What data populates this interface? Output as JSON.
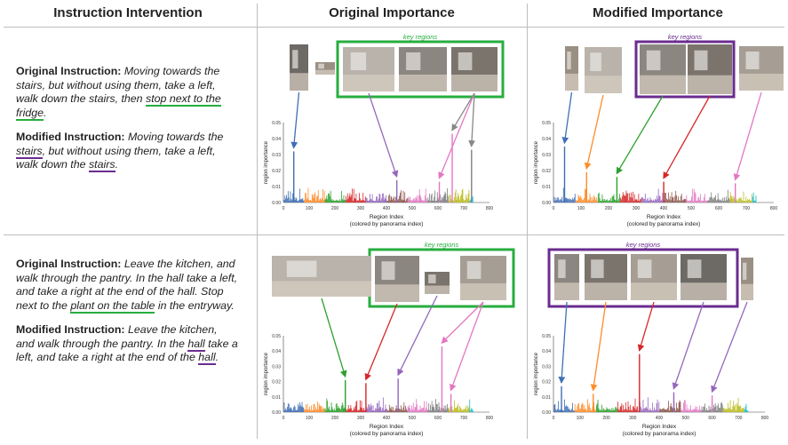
{
  "headers": {
    "col1": "Instruction Intervention",
    "col2": "Original Importance",
    "col3": "Modified Importance"
  },
  "rows": [
    {
      "original": {
        "label": "Original Instruction:",
        "text_a": " Moving towards the stairs, but without using them, take a left, walk down the stairs, then ",
        "text_u": "stop next to the fridge",
        "text_b": "."
      },
      "modified": {
        "label": "Modified Instruction:",
        "t1": " Moving towards the ",
        "u1": "stairs",
        "t2": ", but without using them, take a left, walk down the ",
        "u2": "stairs",
        "t3": "."
      }
    },
    {
      "original": {
        "label": "Original Instruction:",
        "text_a": " Leave the kitchen, and walk through the pantry. In the hall take a left, and take a right at the end of the hall. Stop next to the ",
        "text_u": "plant on the table",
        "text_b": " in the entryway."
      },
      "modified": {
        "label": "Modified Instruction:",
        "t1": " Leave the kitchen, and walk through the pantry. In the ",
        "u1": "hall",
        "t2": " take a left, and take a right at the end of the ",
        "u2": "hall",
        "t3": "."
      }
    }
  ],
  "key_regions_label": "key regions",
  "colors": {
    "green": "#27ae3f",
    "purple": "#6a2c8f",
    "gray": "#888888",
    "divider": "#bdbdbd",
    "palette": [
      "#3f6fb5",
      "#ff8c2a",
      "#2ca02c",
      "#d62728",
      "#9467bd",
      "#8c564b",
      "#e377c2",
      "#7f7f7f",
      "#bcbd22",
      "#17becf"
    ]
  },
  "chart_data": [
    {
      "type": "bar",
      "panel": "row1-original",
      "xlabel": "Region Index",
      "xlabel2": "(colored by panorama index)",
      "ylabel": "region importance",
      "xlim": [
        0,
        800
      ],
      "ylim": [
        0,
        0.05
      ],
      "xticks": [
        "0",
        "100",
        "200",
        "300",
        "400",
        "500",
        "600",
        "700",
        "800"
      ],
      "yticks": [
        "0.00",
        "0.01",
        "0.02",
        "0.03",
        "0.04",
        "0.05"
      ],
      "peaks": [
        {
          "x": 40,
          "y": 0.032,
          "color": "#3f6fb5"
        },
        {
          "x": 440,
          "y": 0.014,
          "color": "#9467bd"
        },
        {
          "x": 605,
          "y": 0.013,
          "color": "#e377c2"
        },
        {
          "x": 655,
          "y": 0.043,
          "color": "#e377c2"
        },
        {
          "x": 730,
          "y": 0.033,
          "color": "#7f7f7f"
        }
      ],
      "arrows": [
        {
          "thumb": 0,
          "x": 40,
          "color": "#3f6fb5"
        },
        {
          "thumb": 2,
          "x": 440,
          "color": "#9467bd"
        },
        {
          "thumb": 4,
          "x": 605,
          "color": "#e377c2"
        },
        {
          "thumb": 4,
          "x": 655,
          "color": "#888888"
        },
        {
          "thumb": 5,
          "x": 730,
          "color": "#888888"
        }
      ]
    },
    {
      "type": "bar",
      "panel": "row1-modified",
      "xlabel": "Region Index",
      "xlabel2": "(colored by panorama index)",
      "ylabel": "region importance",
      "xlim": [
        0,
        800
      ],
      "ylim": [
        0,
        0.05
      ],
      "xticks": [
        "0",
        "100",
        "200",
        "300",
        "400",
        "500",
        "600",
        "700",
        "800"
      ],
      "yticks": [
        "0.00",
        "0.01",
        "0.02",
        "0.03",
        "0.04",
        "0.05"
      ],
      "peaks": [
        {
          "x": 40,
          "y": 0.035,
          "color": "#3f6fb5"
        },
        {
          "x": 120,
          "y": 0.019,
          "color": "#ff8c2a"
        },
        {
          "x": 230,
          "y": 0.016,
          "color": "#2ca02c"
        },
        {
          "x": 400,
          "y": 0.013,
          "color": "#d62728"
        },
        {
          "x": 660,
          "y": 0.012,
          "color": "#e377c2"
        }
      ],
      "arrows": [
        {
          "thumb": 0,
          "x": 40,
          "color": "#3f6fb5"
        },
        {
          "thumb": 1,
          "x": 120,
          "color": "#ff8c2a"
        },
        {
          "thumb": 2,
          "x": 230,
          "color": "#2ca02c"
        },
        {
          "thumb": 3,
          "x": 400,
          "color": "#d62728"
        },
        {
          "thumb": 5,
          "x": 660,
          "color": "#e377c2"
        }
      ]
    },
    {
      "type": "bar",
      "panel": "row2-original",
      "xlabel": "Region Index",
      "xlabel2": "(colored by panorama index)",
      "ylabel": "region importance",
      "xlim": [
        0,
        800
      ],
      "ylim": [
        0,
        0.05
      ],
      "xticks": [
        "0",
        "100",
        "200",
        "300",
        "400",
        "500",
        "600",
        "700",
        "800"
      ],
      "yticks": [
        "0.00",
        "0.01",
        "0.02",
        "0.03",
        "0.04",
        "0.05"
      ],
      "peaks": [
        {
          "x": 240,
          "y": 0.021,
          "color": "#2ca02c"
        },
        {
          "x": 320,
          "y": 0.019,
          "color": "#d62728"
        },
        {
          "x": 445,
          "y": 0.022,
          "color": "#9467bd"
        },
        {
          "x": 615,
          "y": 0.043,
          "color": "#e377c2"
        },
        {
          "x": 650,
          "y": 0.012,
          "color": "#e377c2"
        }
      ],
      "arrows": [
        {
          "thumb": 0,
          "x": 240,
          "color": "#2ca02c"
        },
        {
          "thumb": 1,
          "x": 320,
          "color": "#d62728"
        },
        {
          "thumb": 2,
          "x": 445,
          "color": "#9467bd"
        },
        {
          "thumb": 3,
          "x": 615,
          "color": "#e377c2"
        },
        {
          "thumb": 4,
          "x": 650,
          "color": "#e377c2"
        }
      ]
    },
    {
      "type": "bar",
      "panel": "row2-modified",
      "xlabel": "Region Index",
      "xlabel2": "(colored by panorama index)",
      "ylabel": "region importance",
      "xlim": [
        0,
        800
      ],
      "ylim": [
        0,
        0.05
      ],
      "xticks": [
        "0",
        "100",
        "200",
        "300",
        "400",
        "500",
        "600",
        "700",
        "800"
      ],
      "yticks": [
        "0.00",
        "0.01",
        "0.02",
        "0.03",
        "0.04",
        "0.05"
      ],
      "peaks": [
        {
          "x": 30,
          "y": 0.017,
          "color": "#3f6fb5"
        },
        {
          "x": 150,
          "y": 0.012,
          "color": "#ff8c2a"
        },
        {
          "x": 325,
          "y": 0.038,
          "color": "#d62728"
        },
        {
          "x": 455,
          "y": 0.013,
          "color": "#9467bd"
        },
        {
          "x": 600,
          "y": 0.011,
          "color": "#e377c2"
        }
      ],
      "arrows": [
        {
          "thumb": 0,
          "x": 30,
          "color": "#3f6fb5"
        },
        {
          "thumb": 1,
          "x": 150,
          "color": "#ff8c2a"
        },
        {
          "thumb": 2,
          "x": 325,
          "color": "#d62728"
        },
        {
          "thumb": 3,
          "x": 455,
          "color": "#9467bd"
        },
        {
          "thumb": 4,
          "x": 600,
          "color": "#9467bd"
        }
      ]
    }
  ]
}
